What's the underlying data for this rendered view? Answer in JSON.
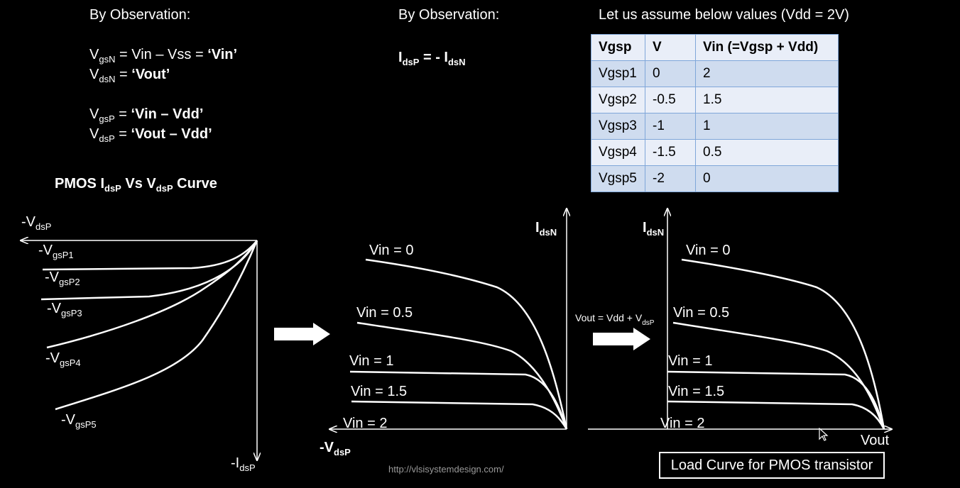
{
  "left_block": {
    "heading": "By Observation:",
    "line1": {
      "sym": "V",
      "sub": "gsN",
      "rest": " = Vin – Vss = ",
      "val": "‘Vin’"
    },
    "line2": {
      "sym": "V",
      "sub": "dsN",
      "rest": " = ",
      "val": "‘Vout’"
    },
    "line3": {
      "sym": "V",
      "sub": "gsP",
      "rest": " = ",
      "val": "‘Vin – Vdd’"
    },
    "line4": {
      "sym": "V",
      "sub": "dsP",
      "rest": " = ",
      "val": "‘Vout – Vdd’"
    }
  },
  "middle_block": {
    "heading": "By Observation:",
    "eq": {
      "a": "I",
      "a_sub": "dsP",
      "mid": " = - I",
      "b_sub": "dsN"
    }
  },
  "table": {
    "heading": "Let us assume below values (Vdd = 2V)",
    "columns": [
      "Vgsp",
      "V",
      "Vin (=Vgsp + Vdd)"
    ],
    "rows": [
      [
        "Vgsp1",
        "0",
        "2"
      ],
      [
        "Vgsp2",
        "-0.5",
        "1.5"
      ],
      [
        "Vgsp3",
        "-1",
        "1"
      ],
      [
        "Vgsp4",
        "-1.5",
        "0.5"
      ],
      [
        "Vgsp5",
        "-2",
        "0"
      ]
    ]
  },
  "pmos_title": {
    "a": "PMOS I",
    "a_sub": "dsP",
    "b": " Vs V",
    "b_sub": "dsP",
    "c": " Curve"
  },
  "graph1": {
    "x_label": {
      "t": "-V",
      "sub": "dsP"
    },
    "y_label": {
      "t": "-I",
      "sub": "dsP"
    },
    "curve_labels": [
      {
        "t": "-V",
        "sub": "gsP1"
      },
      {
        "t": "-V",
        "sub": "gsP2"
      },
      {
        "t": "-V",
        "sub": "gsP3"
      },
      {
        "t": "-V",
        "sub": "gsP4"
      },
      {
        "t": "-V",
        "sub": "gsP5"
      }
    ]
  },
  "graph2": {
    "y_label": {
      "t": "I",
      "sub": "dsN"
    },
    "x_label": {
      "t": "-V",
      "sub": "dsP"
    },
    "curve_labels": [
      "Vin = 0",
      "Vin = 0.5",
      "Vin = 1",
      "Vin = 1.5",
      "Vin = 2"
    ]
  },
  "transform_note": {
    "t": "Vout = Vdd + V",
    "sub": "dsP"
  },
  "graph3": {
    "y_label": {
      "t": "I",
      "sub": "dsN"
    },
    "x_label": "Vout",
    "curve_labels": [
      "Vin = 0",
      "Vin = 0.5",
      "Vin = 1",
      "Vin = 1.5",
      "Vin = 2"
    ]
  },
  "caption": "Load Curve for PMOS transistor",
  "url": "http://vlsisystemdesign.com/"
}
